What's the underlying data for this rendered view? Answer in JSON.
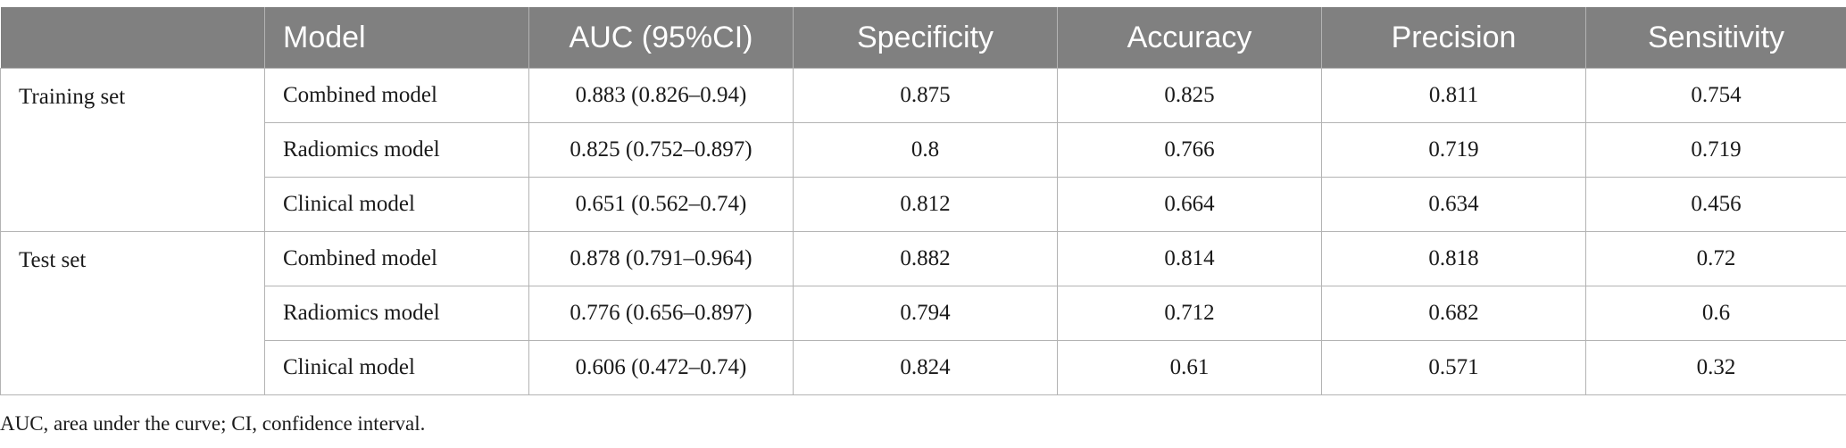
{
  "table": {
    "headers": [
      "",
      "Model",
      "AUC (95%CI)",
      "Specificity",
      "Accuracy",
      "Precision",
      "Sensitivity"
    ],
    "groups": [
      {
        "label": "Training set",
        "rows": [
          [
            "Combined model",
            "0.883 (0.826–0.94)",
            "0.875",
            "0.825",
            "0.811",
            "0.754"
          ],
          [
            "Radiomics model",
            "0.825 (0.752–0.897)",
            "0.8",
            "0.766",
            "0.719",
            "0.719"
          ],
          [
            "Clinical model",
            "0.651 (0.562–0.74)",
            "0.812",
            "0.664",
            "0.634",
            "0.456"
          ]
        ]
      },
      {
        "label": "Test set",
        "rows": [
          [
            "Combined model",
            "0.878 (0.791–0.964)",
            "0.882",
            "0.814",
            "0.818",
            "0.72"
          ],
          [
            "Radiomics model",
            "0.776 (0.656–0.897)",
            "0.794",
            "0.712",
            "0.682",
            "0.6"
          ],
          [
            "Clinical model",
            "0.606 (0.472–0.74)",
            "0.824",
            "0.61",
            "0.571",
            "0.32"
          ]
        ]
      }
    ]
  },
  "footnote": "AUC, area under the curve; CI, confidence interval."
}
